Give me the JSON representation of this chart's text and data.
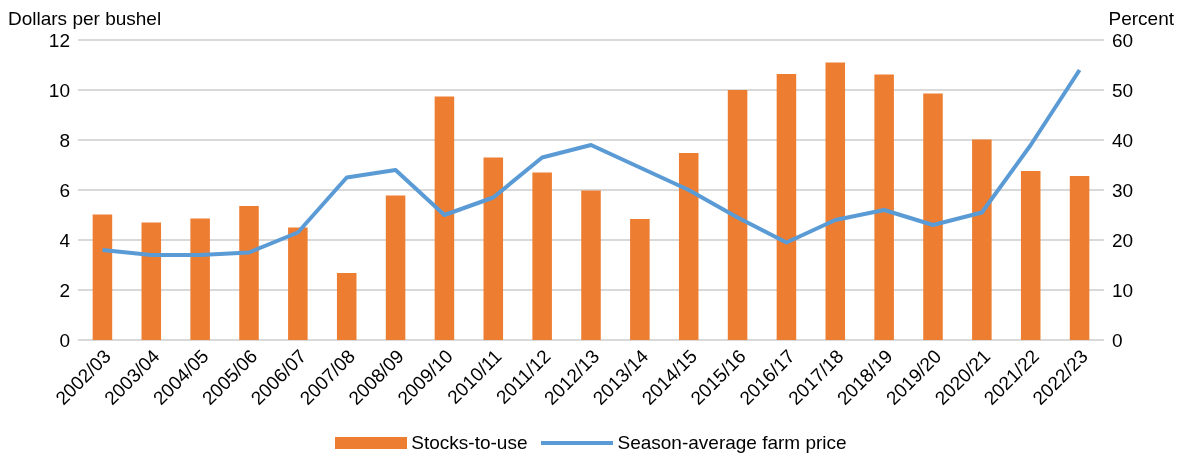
{
  "chart_data": {
    "type": "bar",
    "ylabel": "Dollars per bushel",
    "y2label": "Percent",
    "categories": [
      "2002/03",
      "2003/04",
      "2004/05",
      "2005/06",
      "2006/07",
      "2007/08",
      "2008/09",
      "2009/10",
      "2010/11",
      "2011/12",
      "2012/13",
      "2013/14",
      "2014/15",
      "2015/16",
      "2016/17",
      "2017/18",
      "2018/19",
      "2019/20",
      "2020/21",
      "2021/22",
      "2022/23"
    ],
    "series": [
      {
        "name": "Stocks-to-use",
        "axis": "y2",
        "color": "#ed7d31",
        "values": [
          25.1,
          23.5,
          24.3,
          26.8,
          22.5,
          13.4,
          28.9,
          48.7,
          36.5,
          33.5,
          29.9,
          24.2,
          37.4,
          50.0,
          53.2,
          55.5,
          53.1,
          49.3,
          40.1,
          33.8,
          32.8
        ]
      },
      {
        "name": "Season-average farm price",
        "type": "line",
        "color": "#5b9bd5",
        "values": [
          3.6,
          3.4,
          3.4,
          3.5,
          4.3,
          6.5,
          6.8,
          5.0,
          5.7,
          7.3,
          7.8,
          6.9,
          6.0,
          4.9,
          3.9,
          4.8,
          5.2,
          4.6,
          5.1,
          7.8,
          10.8
        ]
      }
    ],
    "ylim": [
      0,
      12
    ],
    "yticks": [
      0,
      2,
      4,
      6,
      8,
      10,
      12
    ],
    "y2lim": [
      0,
      60
    ],
    "y2ticks": [
      0,
      10,
      20,
      30,
      40,
      50,
      60
    ],
    "grid": "y",
    "legend": "bottom",
    "marker": "none",
    "line_style": "solid"
  }
}
